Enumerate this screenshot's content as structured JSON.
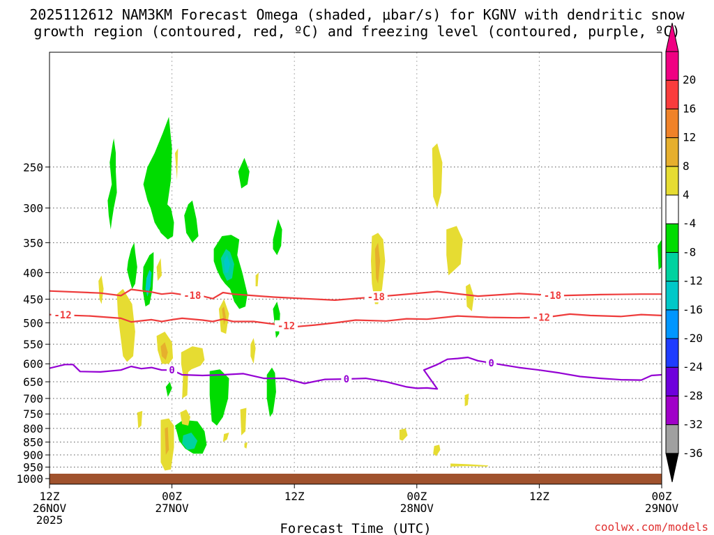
{
  "chart_data": {
    "type": "time-height",
    "title_line1": "2025112612 NAM3KM Forecast Omega (shaded, μbar/s) for KGNV with dendritic snow",
    "title_line2": "growth region (contoured, red, ºC) and freezing level (contoured, purple, ºC)",
    "xlabel": "Forecast Time (UTC)",
    "credit": "coolwx.com/models",
    "x_range_hours": [
      0,
      60
    ],
    "x_ticks": [
      {
        "hour": 0,
        "line1": "12Z",
        "line2": "26NOV",
        "line3": "2025"
      },
      {
        "hour": 12,
        "line1": "00Z",
        "line2": "27NOV",
        "line3": ""
      },
      {
        "hour": 24,
        "line1": "12Z",
        "line2": "",
        "line3": ""
      },
      {
        "hour": 36,
        "line1": "00Z",
        "line2": "28NOV",
        "line3": ""
      },
      {
        "hour": 48,
        "line1": "12Z",
        "line2": "",
        "line3": ""
      },
      {
        "hour": 60,
        "line1": "00Z",
        "line2": "29NOV",
        "line3": ""
      }
    ],
    "y_range_hpa": [
      1025,
      150
    ],
    "y_ticks": [
      250,
      300,
      350,
      400,
      450,
      500,
      550,
      600,
      650,
      700,
      750,
      800,
      850,
      900,
      950,
      1000
    ],
    "colorbar": [
      {
        "label": "",
        "color": "#000000"
      },
      {
        "label": "-36",
        "color": "#a0a0a0"
      },
      {
        "label": "-32",
        "color": "#a000c8"
      },
      {
        "label": "-28",
        "color": "#6e00dc"
      },
      {
        "label": "-24",
        "color": "#1e3cff"
      },
      {
        "label": "-20",
        "color": "#0096ff"
      },
      {
        "label": "-16",
        "color": "#00c8c8"
      },
      {
        "label": "-12",
        "color": "#00d2a0"
      },
      {
        "label": "-8",
        "color": "#00dc00"
      },
      {
        "label": "-4",
        "color": "#ffffff"
      },
      {
        "label": "4",
        "color": "#e6dc32"
      },
      {
        "label": "8",
        "color": "#e6af2d"
      },
      {
        "label": "12",
        "color": "#f08228"
      },
      {
        "label": "16",
        "color": "#fa3c3c"
      },
      {
        "label": "20",
        "color": "#f00082"
      }
    ],
    "colors": {
      "dgz": "#ee3b3b",
      "freezing": "#9400d3",
      "ground": "#a0522d"
    },
    "dgz_minus18": {
      "label": "-18",
      "x": [
        0,
        5,
        7,
        8,
        10,
        11,
        12,
        13,
        15,
        16,
        17,
        18,
        20,
        22,
        25,
        28,
        31,
        34,
        38,
        42,
        46,
        50,
        54,
        58,
        60
      ],
      "y": [
        434,
        438,
        443,
        431,
        436,
        440,
        438,
        441,
        444,
        449,
        437,
        440,
        443,
        446,
        449,
        452,
        447,
        442,
        435,
        444,
        439,
        443,
        441,
        440,
        440
      ],
      "label_hours": [
        14,
        32,
        49.3
      ]
    },
    "dgz_minus12": {
      "label": "-12",
      "x": [
        0,
        4,
        7,
        8,
        10,
        11,
        12,
        13,
        15,
        16,
        17,
        18,
        20,
        22,
        24,
        26,
        28,
        30,
        33,
        35,
        37,
        40,
        43,
        46,
        49,
        51,
        53,
        56,
        58,
        60
      ],
      "y": [
        482,
        485,
        490,
        498,
        493,
        497,
        493,
        490,
        494,
        497,
        492,
        497,
        497,
        503,
        509,
        505,
        500,
        494,
        496,
        491,
        492,
        485,
        488,
        489,
        487,
        481,
        484,
        486,
        482,
        484
      ],
      "label_hours": [
        1.3,
        23.2,
        48.2
      ]
    },
    "freezing_level": {
      "label": "0",
      "x": [
        0,
        1.5,
        2.3,
        3,
        5,
        7,
        8,
        9,
        10,
        11,
        12,
        13,
        15,
        17,
        19,
        21,
        23,
        25,
        27,
        29,
        31,
        33,
        35,
        36,
        37,
        38,
        36.7,
        38,
        39,
        40,
        41,
        42,
        44,
        46,
        48,
        50,
        52,
        54,
        56,
        58,
        59,
        60
      ],
      "y": [
        612,
        602,
        602,
        621,
        622,
        617,
        607,
        613,
        610,
        617,
        617,
        630,
        632,
        630,
        627,
        640,
        640,
        655,
        643,
        642,
        640,
        650,
        665,
        669,
        668,
        671,
        617,
        602,
        588,
        586,
        583,
        592,
        601,
        610,
        617,
        625,
        635,
        640,
        644,
        645,
        632,
        630
      ],
      "label_hours": [
        12,
        29.1,
        43.3
      ]
    },
    "omega_regions": [
      {
        "cat": "-8",
        "x": [
          6.2,
          5.9,
          6.1,
          5.7,
          5.8,
          6.0,
          6.1,
          6.3,
          6.6,
          6.5,
          6.5,
          6.3
        ],
        "y": [
          225,
          245,
          270,
          290,
          310,
          330,
          318,
          300,
          280,
          255,
          235,
          220
        ]
      },
      {
        "cat": "-8",
        "x": [
          9.6,
          9.2,
          9.6,
          10.3,
          11.1,
          11.7,
          12.0,
          11.9,
          11.4,
          10.7,
          10.3,
          9.9
        ],
        "y": [
          290,
          270,
          250,
          235,
          215,
          200,
          230,
          265,
          310,
          330,
          320,
          300
        ]
      },
      {
        "cat": "-8",
        "x": [
          10.2,
          10.6,
          11.3,
          11.9,
          12.2,
          12.1,
          11.6,
          10.9,
          10.4
        ],
        "y": [
          310,
          295,
          292,
          300,
          320,
          340,
          345,
          335,
          320
        ]
      },
      {
        "cat": "-8",
        "x": [
          7.7,
          8.0,
          8.3,
          8.4,
          8.6,
          8.4,
          8.1,
          7.8,
          7.6
        ],
        "y": [
          380,
          360,
          350,
          365,
          390,
          420,
          430,
          410,
          395
        ]
      },
      {
        "cat": "-8",
        "x": [
          9.2,
          9.8,
          10.2,
          10.2,
          10.1,
          9.8,
          9.4,
          9.1
        ],
        "y": [
          390,
          370,
          365,
          390,
          430,
          460,
          465,
          430
        ]
      },
      {
        "cat": "-16",
        "x": [
          9.5,
          9.8,
          10.0,
          9.9,
          9.6,
          9.4
        ],
        "y": [
          410,
          395,
          400,
          425,
          445,
          430
        ]
      },
      {
        "cat": "-8",
        "x": [
          13.6,
          13.2,
          13.4,
          14.0,
          14.6,
          14.4,
          14.0
        ],
        "y": [
          295,
          310,
          335,
          350,
          340,
          315,
          290
        ]
      },
      {
        "cat": "-8",
        "x": [
          16.1,
          16.9,
          17.8,
          18.6,
          18.4,
          18.9,
          19.4,
          19.2,
          18.6,
          18.1,
          17.7,
          17.2,
          16.8,
          16.4,
          16.1
        ],
        "y": [
          360,
          340,
          338,
          345,
          370,
          400,
          440,
          465,
          470,
          455,
          430,
          420,
          410,
          395,
          380
        ]
      },
      {
        "cat": "-12",
        "x": [
          16.8,
          17.3,
          17.7,
          18.1,
          17.9,
          17.4,
          17.0
        ],
        "y": [
          375,
          360,
          365,
          385,
          410,
          415,
          400
        ]
      },
      {
        "cat": "-16",
        "x": [
          17.1,
          17.4,
          17.7,
          17.5,
          17.2
        ],
        "y": [
          380,
          370,
          385,
          400,
          400
        ]
      },
      {
        "cat": "-8",
        "x": [
          18.5,
          19.1,
          19.6,
          19.4,
          18.8
        ],
        "y": [
          255,
          240,
          255,
          270,
          275
        ]
      },
      {
        "cat": "-8",
        "x": [
          21.9,
          22.4,
          22.8,
          22.7,
          22.3,
          21.9
        ],
        "y": [
          345,
          315,
          330,
          355,
          370,
          360
        ]
      },
      {
        "cat": "-8",
        "x": [
          21.9,
          22.3,
          22.6,
          22.5,
          22.2
        ],
        "y": [
          470,
          455,
          480,
          525,
          535
        ]
      },
      {
        "cat": "-8",
        "x": [
          21.3,
          21.8,
          22.1,
          22.2,
          21.9,
          21.6,
          21.3
        ],
        "y": [
          630,
          610,
          625,
          680,
          745,
          760,
          700
        ]
      },
      {
        "cat": "-8",
        "x": [
          15.7,
          16.7,
          17.6,
          17.5,
          17.0,
          16.4,
          15.9,
          15.7
        ],
        "y": [
          620,
          615,
          640,
          700,
          760,
          790,
          775,
          690
        ]
      },
      {
        "cat": "-8",
        "x": [
          11.4,
          11.8,
          12.0,
          11.6
        ],
        "y": [
          665,
          650,
          670,
          695
        ]
      },
      {
        "cat": "-8",
        "x": [
          12.3,
          13.1,
          14.5,
          15.2,
          15.4,
          15.0,
          14.1,
          13.3,
          12.7,
          12.5
        ],
        "y": [
          790,
          770,
          775,
          810,
          860,
          895,
          895,
          875,
          845,
          815
        ]
      },
      {
        "cat": "-12",
        "x": [
          13.1,
          13.9,
          14.5,
          14.2,
          13.5,
          13.0
        ],
        "y": [
          825,
          815,
          845,
          875,
          880,
          855
        ]
      },
      {
        "cat": "-8",
        "x": [
          59.6,
          60.0,
          60.0,
          59.7
        ],
        "y": [
          355,
          345,
          390,
          395
        ]
      },
      {
        "cat": "4",
        "x": [
          4.8,
          5.1,
          5.3,
          5.1,
          4.9
        ],
        "y": [
          415,
          405,
          430,
          460,
          450
        ]
      },
      {
        "cat": "4",
        "x": [
          6.6,
          7.2,
          8.1,
          8.4,
          8.2,
          7.6,
          7.2,
          6.9,
          6.7
        ],
        "y": [
          440,
          430,
          460,
          520,
          580,
          595,
          580,
          520,
          480
        ]
      },
      {
        "cat": "4",
        "x": [
          10.5,
          11.3,
          12.0,
          12.1,
          11.7,
          11.0,
          10.6
        ],
        "y": [
          530,
          520,
          545,
          585,
          600,
          600,
          565
        ]
      },
      {
        "cat": "8",
        "x": [
          10.9,
          11.3,
          11.6,
          11.4,
          11.0
        ],
        "y": [
          555,
          545,
          570,
          590,
          580
        ]
      },
      {
        "cat": "4",
        "x": [
          12.9,
          14.0,
          15.0,
          15.2,
          14.8,
          13.9,
          13.1,
          12.9
        ],
        "y": [
          570,
          555,
          560,
          590,
          605,
          615,
          635,
          600
        ]
      },
      {
        "cat": "4",
        "x": [
          13.1,
          13.6,
          13.5,
          13.0
        ],
        "y": [
          625,
          615,
          690,
          700
        ]
      },
      {
        "cat": "4",
        "x": [
          16.6,
          17.1,
          17.6,
          17.3,
          16.8
        ],
        "y": [
          470,
          450,
          480,
          525,
          520
        ]
      },
      {
        "cat": "8",
        "x": [
          16.9,
          17.1,
          17.3,
          17.1
        ],
        "y": [
          470,
          465,
          490,
          505
        ]
      },
      {
        "cat": "4",
        "x": [
          19.7,
          20.0,
          20.2,
          20.0,
          19.7
        ],
        "y": [
          550,
          535,
          560,
          600,
          580
        ]
      },
      {
        "cat": "4",
        "x": [
          10.5,
          10.9,
          11.0,
          10.6
        ],
        "y": [
          390,
          375,
          405,
          415
        ]
      },
      {
        "cat": "4",
        "x": [
          12.3,
          12.6,
          12.5
        ],
        "y": [
          235,
          230,
          265
        ]
      },
      {
        "cat": "4",
        "x": [
          8.6,
          9.1,
          9.0,
          8.7
        ],
        "y": [
          745,
          740,
          790,
          800
        ]
      },
      {
        "cat": "4",
        "x": [
          10.9,
          11.7,
          12.2,
          12.2,
          11.9,
          11.3,
          10.9,
          10.9
        ],
        "y": [
          770,
          765,
          790,
          870,
          960,
          965,
          930,
          840
        ]
      },
      {
        "cat": "8",
        "x": [
          11.3,
          11.6,
          11.7,
          11.4
        ],
        "y": [
          800,
          795,
          880,
          900
        ]
      },
      {
        "cat": "4",
        "x": [
          12.8,
          13.4,
          13.8,
          13.6,
          13.0
        ],
        "y": [
          745,
          735,
          760,
          790,
          785
        ]
      },
      {
        "cat": "4",
        "x": [
          18.7,
          19.3,
          19.2,
          18.8
        ],
        "y": [
          735,
          730,
          810,
          825
        ]
      },
      {
        "cat": "4",
        "x": [
          17.1,
          17.6,
          17.4,
          17.0
        ],
        "y": [
          820,
          815,
          840,
          850
        ]
      },
      {
        "cat": "4",
        "x": [
          19.1,
          19.4,
          19.3,
          19.1
        ],
        "y": [
          855,
          850,
          875,
          870
        ]
      },
      {
        "cat": "4",
        "x": [
          20.2,
          20.5,
          20.4,
          20.2
        ],
        "y": [
          405,
          400,
          425,
          425
        ]
      },
      {
        "cat": "4",
        "x": [
          31.6,
          32.2,
          32.7,
          32.9,
          32.6,
          32.2,
          31.9,
          31.6,
          31.5
        ],
        "y": [
          340,
          335,
          345,
          380,
          430,
          460,
          460,
          420,
          380
        ]
      },
      {
        "cat": "8",
        "x": [
          31.9,
          32.2,
          32.4,
          32.2,
          32.0
        ],
        "y": [
          360,
          350,
          380,
          420,
          410
        ]
      },
      {
        "cat": "4",
        "x": [
          37.5,
          38.0,
          38.5,
          38.4,
          38.0,
          37.6
        ],
        "y": [
          230,
          225,
          245,
          280,
          300,
          285
        ]
      },
      {
        "cat": "4",
        "x": [
          38.9,
          39.9,
          40.5,
          40.3,
          39.7,
          39.1,
          38.9
        ],
        "y": [
          330,
          325,
          345,
          385,
          395,
          405,
          370
        ]
      },
      {
        "cat": "4",
        "x": [
          40.8,
          41.2,
          41.6,
          41.4,
          40.9
        ],
        "y": [
          425,
          420,
          445,
          475,
          465
        ]
      },
      {
        "cat": "4",
        "x": [
          34.3,
          34.9,
          35.1,
          34.6,
          34.3
        ],
        "y": [
          805,
          800,
          825,
          845,
          840
        ]
      },
      {
        "cat": "4",
        "x": [
          37.7,
          38.2,
          38.3,
          37.9,
          37.6
        ],
        "y": [
          865,
          860,
          880,
          905,
          895
        ]
      },
      {
        "cat": "4",
        "x": [
          39.3,
          41.0,
          43.0,
          42.9,
          40.8,
          39.3
        ],
        "y": [
          935,
          938,
          943,
          948,
          946,
          948
        ]
      },
      {
        "cat": "4",
        "x": [
          40.7,
          41.1,
          41.0,
          40.7
        ],
        "y": [
          690,
          685,
          720,
          725
        ]
      }
    ]
  }
}
